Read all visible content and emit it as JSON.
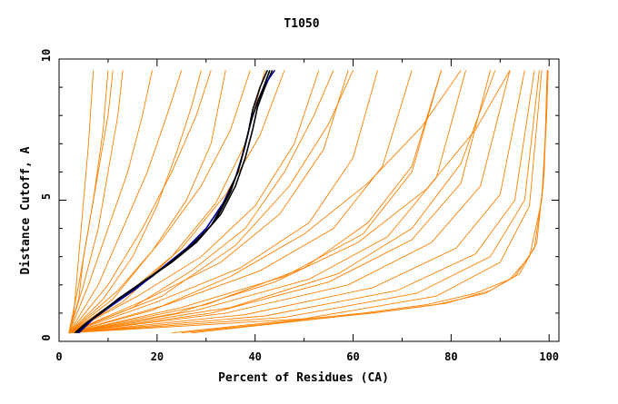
{
  "chart_data": {
    "type": "line",
    "title": "T1050",
    "xlabel": "Percent of Residues (CA)",
    "ylabel": "Distance Cutoff, A",
    "xlim": [
      0,
      102
    ],
    "ylim": [
      0,
      10
    ],
    "x_ticks": [
      0,
      20,
      40,
      60,
      80,
      100
    ],
    "y_ticks": [
      0,
      5,
      10
    ],
    "grid": false,
    "legend": "none",
    "colors": {
      "models": "#ff8000",
      "highlight_blue": "#0000a0",
      "highlight_black": "#000000"
    },
    "series": [
      {
        "color": "#000000",
        "points": [
          [
            3.5,
            0.3
          ],
          [
            6,
            0.7
          ],
          [
            9,
            1.1
          ],
          [
            13,
            1.6
          ],
          [
            18,
            2.2
          ],
          [
            23,
            2.8
          ],
          [
            28,
            3.5
          ],
          [
            32,
            4.3
          ],
          [
            35,
            5.3
          ],
          [
            37,
            6.3
          ],
          [
            38.5,
            7.3
          ],
          [
            39.5,
            8.2
          ],
          [
            41,
            9.0
          ],
          [
            42.5,
            9.6
          ]
        ]
      },
      {
        "color": "#000000",
        "points": [
          [
            3.8,
            0.3
          ],
          [
            6.5,
            0.75
          ],
          [
            10,
            1.2
          ],
          [
            14,
            1.7
          ],
          [
            19,
            2.3
          ],
          [
            24,
            3.0
          ],
          [
            29,
            3.7
          ],
          [
            33,
            4.5
          ],
          [
            36,
            5.5
          ],
          [
            38,
            6.5
          ],
          [
            39.5,
            7.5
          ],
          [
            40.5,
            8.3
          ],
          [
            42,
            9.0
          ],
          [
            43.5,
            9.6
          ]
        ]
      },
      {
        "color": "#0000a0",
        "points": [
          [
            4,
            0.3
          ],
          [
            7,
            0.8
          ],
          [
            11,
            1.3
          ],
          [
            16,
            1.9
          ],
          [
            21,
            2.6
          ],
          [
            26,
            3.3
          ],
          [
            30,
            4.0
          ],
          [
            33.5,
            4.9
          ],
          [
            36,
            5.8
          ],
          [
            37.8,
            6.8
          ],
          [
            39,
            7.7
          ],
          [
            40.5,
            8.5
          ],
          [
            42,
            9.1
          ],
          [
            44,
            9.6
          ]
        ]
      },
      {
        "color": "#000000",
        "points": [
          [
            3.2,
            0.3
          ],
          [
            5.5,
            0.65
          ],
          [
            8.5,
            1.0
          ],
          [
            12,
            1.5
          ],
          [
            17,
            2.1
          ],
          [
            22,
            2.7
          ],
          [
            27,
            3.4
          ],
          [
            31,
            4.1
          ],
          [
            34,
            5.0
          ],
          [
            36.5,
            6.0
          ],
          [
            38,
            7.0
          ],
          [
            39.5,
            8.0
          ],
          [
            41.5,
            8.9
          ],
          [
            43,
            9.6
          ]
        ]
      },
      {
        "color": "#ff8000",
        "points": [
          [
            2,
            0.3
          ],
          [
            4,
            2
          ],
          [
            6,
            4
          ],
          [
            8,
            6
          ],
          [
            10,
            8
          ],
          [
            11,
            9.6
          ]
        ]
      },
      {
        "color": "#ff8000",
        "points": [
          [
            2,
            0.3
          ],
          [
            5,
            2
          ],
          [
            8,
            4
          ],
          [
            10,
            6
          ],
          [
            12,
            8
          ],
          [
            13,
            9.6
          ]
        ]
      },
      {
        "color": "#ff8000",
        "points": [
          [
            2,
            0.3
          ],
          [
            6,
            2
          ],
          [
            10,
            4
          ],
          [
            14,
            6
          ],
          [
            17,
            8
          ],
          [
            19,
            9.6
          ]
        ]
      },
      {
        "color": "#ff8000",
        "points": [
          [
            2,
            0.3
          ],
          [
            8,
            2
          ],
          [
            13,
            4
          ],
          [
            18,
            6
          ],
          [
            22,
            8
          ],
          [
            25,
            9.6
          ]
        ]
      },
      {
        "color": "#ff8000",
        "points": [
          [
            2,
            0.3
          ],
          [
            10,
            2
          ],
          [
            17,
            4
          ],
          [
            23,
            6
          ],
          [
            28,
            8
          ],
          [
            31,
            9.6
          ]
        ]
      },
      {
        "color": "#ff8000",
        "points": [
          [
            2,
            0.3
          ],
          [
            12,
            1.8
          ],
          [
            21,
            3.6
          ],
          [
            29,
            5.5
          ],
          [
            35,
            7.5
          ],
          [
            39,
            9.6
          ]
        ]
      },
      {
        "color": "#ff8000",
        "points": [
          [
            2,
            0.3
          ],
          [
            14,
            1.7
          ],
          [
            25,
            3.3
          ],
          [
            34,
            5.2
          ],
          [
            41,
            7.3
          ],
          [
            46,
            9.6
          ]
        ]
      },
      {
        "color": "#ff8000",
        "points": [
          [
            2,
            0.3
          ],
          [
            16,
            1.6
          ],
          [
            29,
            3.0
          ],
          [
            40,
            4.8
          ],
          [
            48,
            7.0
          ],
          [
            53,
            9.6
          ]
        ]
      },
      {
        "color": "#ff8000",
        "points": [
          [
            2,
            0.3
          ],
          [
            18,
            1.5
          ],
          [
            33,
            2.8
          ],
          [
            45,
            4.5
          ],
          [
            54,
            6.8
          ],
          [
            59,
            9.6
          ]
        ]
      },
      {
        "color": "#ff8000",
        "points": [
          [
            2,
            0.3
          ],
          [
            20,
            1.4
          ],
          [
            37,
            2.6
          ],
          [
            51,
            4.2
          ],
          [
            60,
            6.5
          ],
          [
            65,
            9.6
          ]
        ]
      },
      {
        "color": "#ff8000",
        "points": [
          [
            2,
            0.3
          ],
          [
            22,
            1.3
          ],
          [
            41,
            2.5
          ],
          [
            56,
            4.0
          ],
          [
            66,
            6.2
          ],
          [
            72,
            9.6
          ]
        ]
      },
      {
        "color": "#ff8000",
        "points": [
          [
            2,
            0.3
          ],
          [
            25,
            1.2
          ],
          [
            46,
            2.3
          ],
          [
            62,
            3.8
          ],
          [
            72,
            6.0
          ],
          [
            78,
            9.6
          ]
        ]
      },
      {
        "color": "#ff8000",
        "points": [
          [
            2,
            0.3
          ],
          [
            28,
            1.1
          ],
          [
            51,
            2.2
          ],
          [
            67,
            3.7
          ],
          [
            77,
            5.8
          ],
          [
            83,
            9.6
          ]
        ]
      },
      {
        "color": "#ff8000",
        "points": [
          [
            2,
            0.3
          ],
          [
            31,
            1.0
          ],
          [
            55,
            2.1
          ],
          [
            72,
            3.6
          ],
          [
            82,
            5.6
          ],
          [
            88,
            9.6
          ]
        ]
      },
      {
        "color": "#ff8000",
        "points": [
          [
            2,
            0.3
          ],
          [
            34,
            1.0
          ],
          [
            59,
            2.0
          ],
          [
            76,
            3.5
          ],
          [
            86,
            5.5
          ],
          [
            92,
            9.6
          ]
        ]
      },
      {
        "color": "#ff8000",
        "points": [
          [
            2,
            0.3
          ],
          [
            38,
            0.95
          ],
          [
            64,
            1.9
          ],
          [
            81,
            3.3
          ],
          [
            90,
            5.2
          ],
          [
            95,
            9.6
          ]
        ]
      },
      {
        "color": "#ff8000",
        "points": [
          [
            2,
            0.3
          ],
          [
            42,
            0.9
          ],
          [
            69,
            1.8
          ],
          [
            85,
            3.1
          ],
          [
            93,
            5.0
          ],
          [
            97,
            9.6
          ]
        ]
      },
      {
        "color": "#ff8000",
        "points": [
          [
            2,
            0.3
          ],
          [
            46,
            0.85
          ],
          [
            73,
            1.7
          ],
          [
            88,
            3.0
          ],
          [
            95,
            5.0
          ],
          [
            98,
            9.6
          ]
        ]
      },
      {
        "color": "#ff8000",
        "points": [
          [
            2,
            0.3
          ],
          [
            50,
            0.8
          ],
          [
            77,
            1.6
          ],
          [
            90,
            2.8
          ],
          [
            96,
            4.8
          ],
          [
            98.5,
            9.6
          ]
        ]
      },
      {
        "color": "#ff8000",
        "points": [
          [
            2,
            0.3
          ],
          [
            15,
            1.2
          ],
          [
            27,
            2.5
          ],
          [
            38,
            4.0
          ],
          [
            46,
            6.0
          ],
          [
            52,
            8.0
          ],
          [
            56,
            9.6
          ]
        ]
      },
      {
        "color": "#ff8000",
        "points": [
          [
            2,
            0.3
          ],
          [
            19,
            1.1
          ],
          [
            35,
            2.3
          ],
          [
            50,
            3.8
          ],
          [
            63,
            5.6
          ],
          [
            74,
            7.6
          ],
          [
            82,
            9.6
          ]
        ]
      },
      {
        "color": "#ff8000",
        "points": [
          [
            2,
            0.3
          ],
          [
            24,
            1.0
          ],
          [
            44,
            2.1
          ],
          [
            61,
            3.5
          ],
          [
            75,
            5.4
          ],
          [
            85,
            7.5
          ],
          [
            92,
            9.6
          ]
        ]
      },
      {
        "color": "#ff8000",
        "points": [
          [
            2,
            0.3
          ],
          [
            9,
            1.5
          ],
          [
            15,
            3.0
          ],
          [
            20,
            4.8
          ],
          [
            24,
            6.7
          ],
          [
            27,
            8.3
          ],
          [
            29,
            9.6
          ]
        ]
      },
      {
        "color": "#ff8000",
        "points": [
          [
            2,
            0.3
          ],
          [
            11,
            1.5
          ],
          [
            19,
            3.2
          ],
          [
            26,
            5.0
          ],
          [
            31,
            7.0
          ],
          [
            34,
            9.6
          ]
        ]
      },
      {
        "color": "#ff8000",
        "points": [
          [
            2,
            0.3
          ],
          [
            13,
            1.4
          ],
          [
            23,
            3.0
          ],
          [
            32,
            4.9
          ],
          [
            38,
            7.0
          ],
          [
            42,
            9.6
          ]
        ]
      },
      {
        "color": "#ff8000",
        "points": [
          [
            2,
            0.3
          ],
          [
            3,
            1
          ],
          [
            4,
            3
          ],
          [
            5,
            5
          ],
          [
            6,
            7
          ],
          [
            7,
            9.6
          ]
        ]
      },
      {
        "color": "#ff8000",
        "points": [
          [
            2,
            0.3
          ],
          [
            4,
            1.5
          ],
          [
            5,
            3
          ],
          [
            7,
            5
          ],
          [
            9,
            7.5
          ],
          [
            10,
            9.6
          ]
        ]
      },
      {
        "color": "#ff8000",
        "points": [
          [
            23,
            0.3
          ],
          [
            45,
            0.7
          ],
          [
            62,
            1.0
          ],
          [
            75,
            1.3
          ],
          [
            85,
            1.7
          ],
          [
            92,
            2.2
          ],
          [
            96,
            3.0
          ],
          [
            98.5,
            5.0
          ],
          [
            99.3,
            7.5
          ],
          [
            99.6,
            9.6
          ]
        ]
      },
      {
        "color": "#ff8000",
        "points": [
          [
            25,
            0.3
          ],
          [
            47,
            0.7
          ],
          [
            64,
            1.0
          ],
          [
            77,
            1.3
          ],
          [
            87,
            1.7
          ],
          [
            93,
            2.3
          ],
          [
            97,
            3.3
          ],
          [
            98.8,
            5.5
          ],
          [
            99.5,
            8.0
          ],
          [
            99.8,
            9.6
          ]
        ]
      },
      {
        "color": "#ff8000",
        "points": [
          [
            27,
            0.3
          ],
          [
            48,
            0.7
          ],
          [
            66,
            1.05
          ],
          [
            79,
            1.35
          ],
          [
            88,
            1.8
          ],
          [
            94,
            2.4
          ],
          [
            97.5,
            3.5
          ],
          [
            99,
            6.0
          ],
          [
            99.6,
            9.6
          ]
        ]
      },
      {
        "color": "#ff8000",
        "points": [
          [
            2,
            0.3
          ],
          [
            30,
            1.3
          ],
          [
            50,
            2.6
          ],
          [
            63,
            4.2
          ],
          [
            72,
            6.2
          ],
          [
            78,
            9.6
          ]
        ]
      },
      {
        "color": "#ff8000",
        "points": [
          [
            2,
            0.3
          ],
          [
            35,
            1.2
          ],
          [
            57,
            2.4
          ],
          [
            72,
            4.0
          ],
          [
            82,
            6.3
          ],
          [
            89,
            9.6
          ]
        ]
      },
      {
        "color": "#ff8000",
        "points": [
          [
            2,
            0.3
          ],
          [
            21,
            1.6
          ],
          [
            36,
            3.4
          ],
          [
            47,
            5.5
          ],
          [
            55,
            7.7
          ],
          [
            60,
            9.6
          ]
        ]
      }
    ]
  }
}
